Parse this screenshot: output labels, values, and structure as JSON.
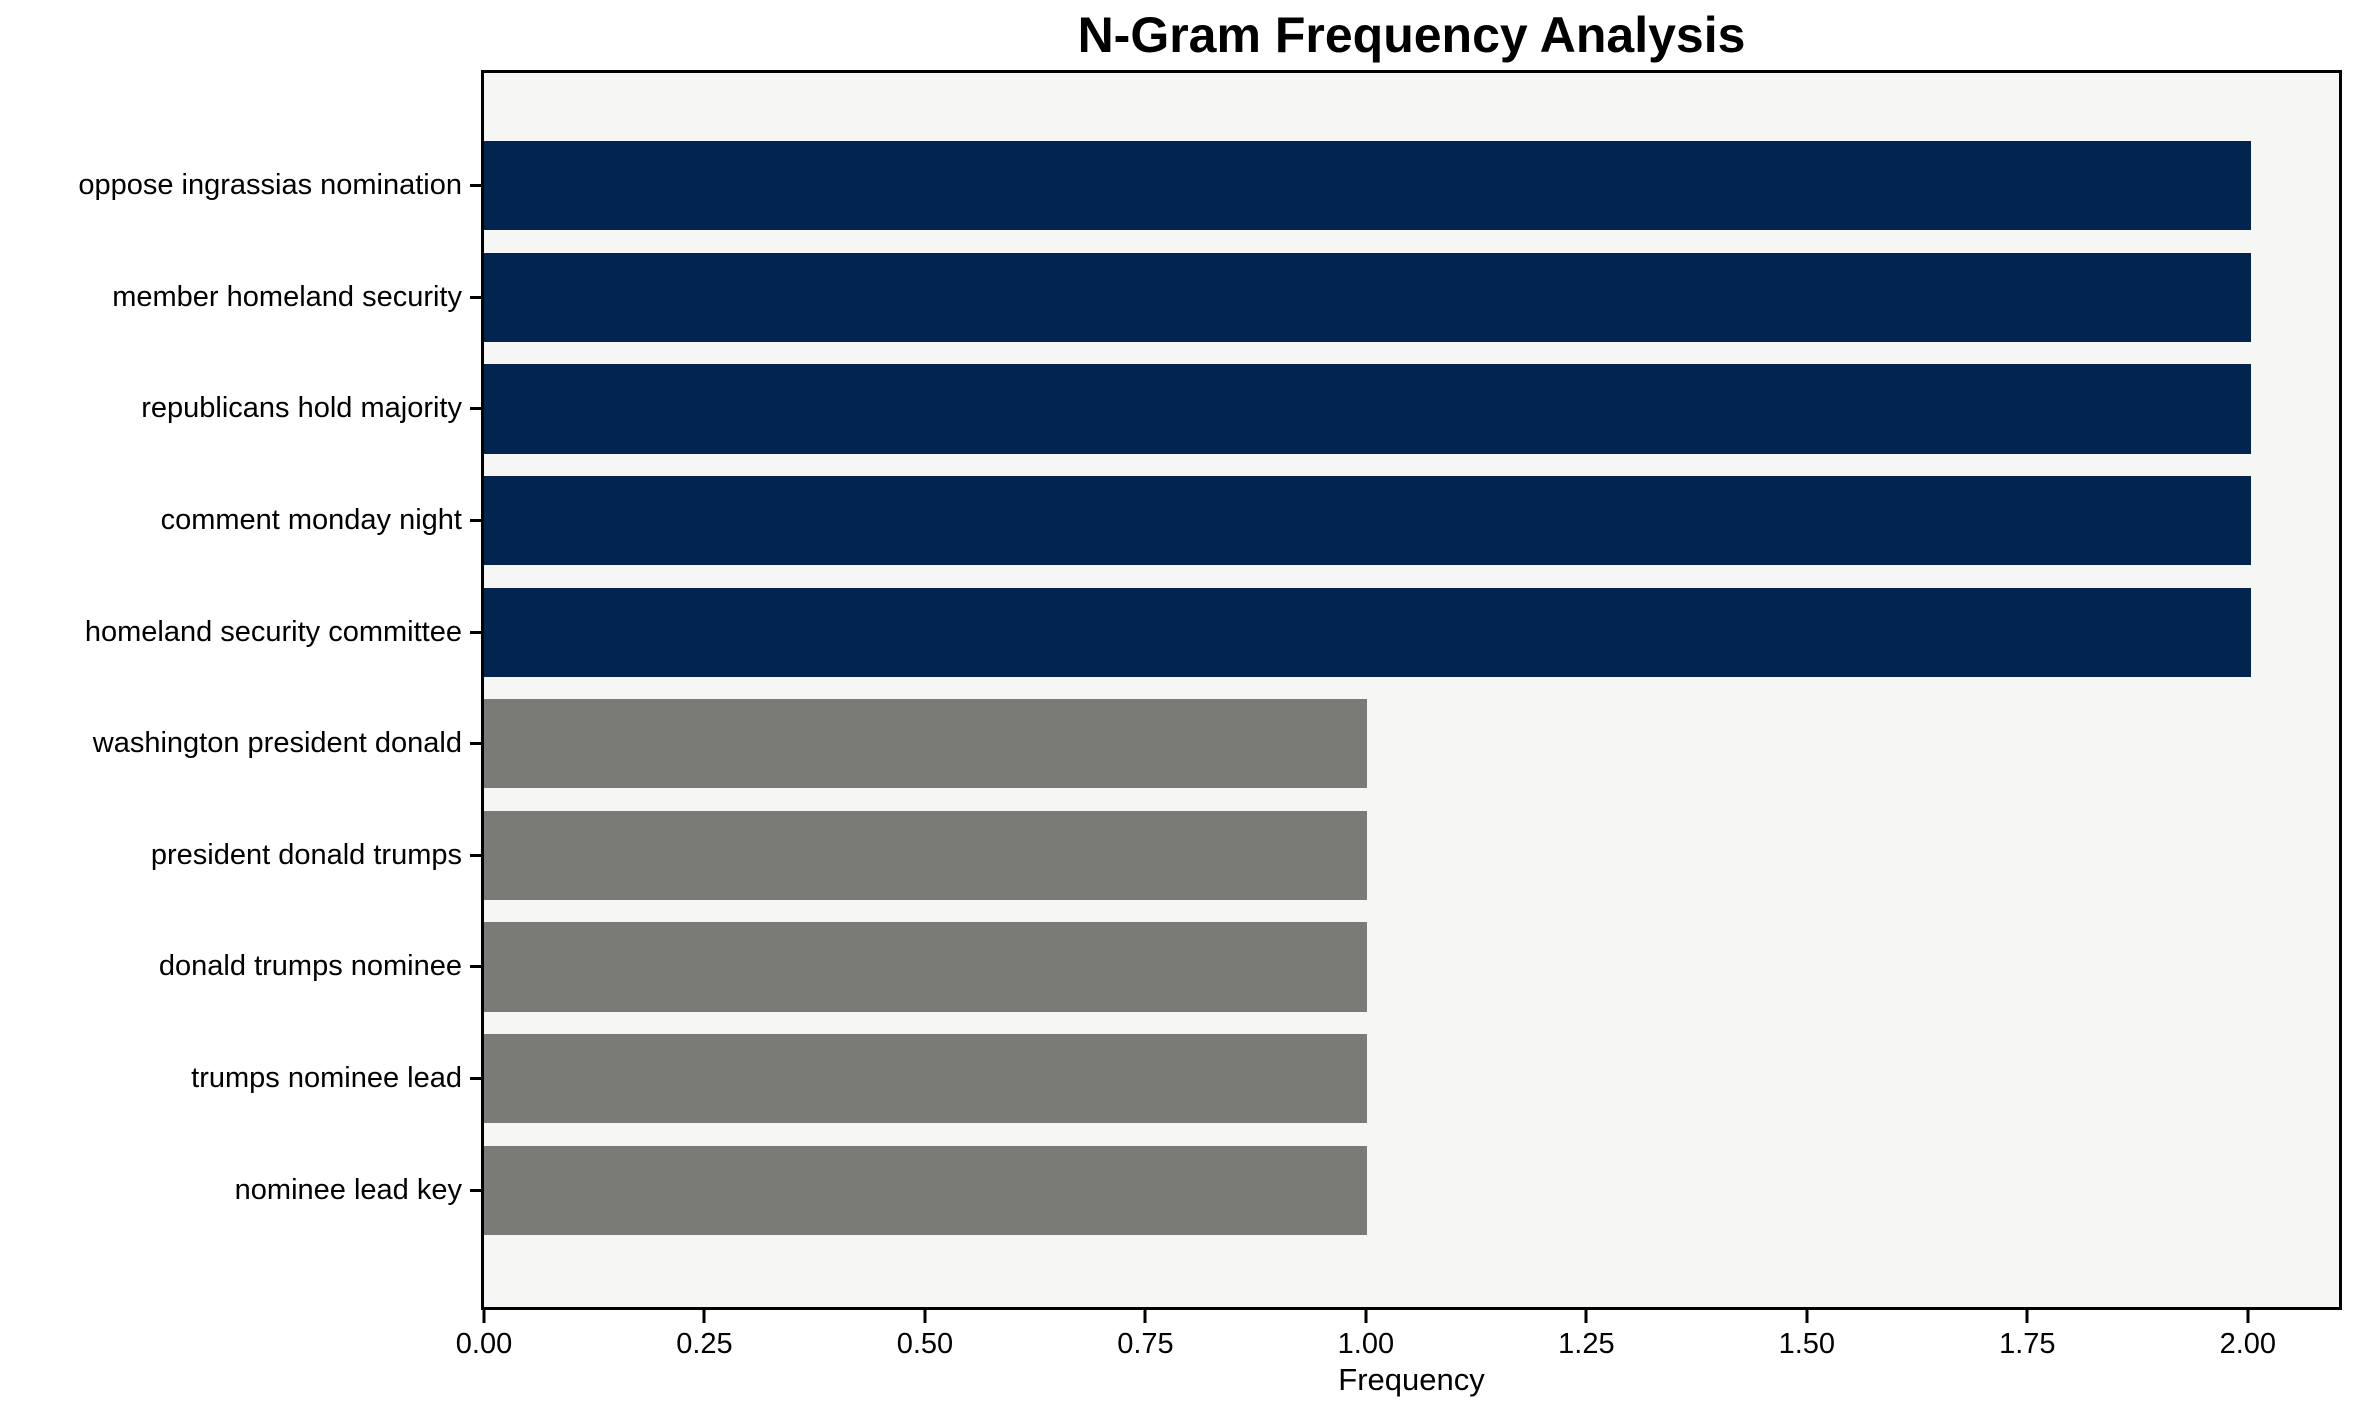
{
  "figure": {
    "background": "#ffffff",
    "plot_background": "#f6f6f5",
    "axis_color": "#000000",
    "navy_color": "#02254f",
    "gray_color": "#7a7b77"
  },
  "chart_data": {
    "type": "bar",
    "orientation": "horizontal",
    "title": "N-Gram Frequency Analysis",
    "xlabel": "Frequency",
    "ylabel": "",
    "categories": [
      "oppose ingrassias nomination",
      "member homeland security",
      "republicans hold majority",
      "comment monday night",
      "homeland security committee",
      "washington president donald",
      "president donald trumps",
      "donald trumps nominee",
      "trumps nominee lead",
      "nominee lead key"
    ],
    "values": [
      2,
      2,
      2,
      2,
      2,
      1,
      1,
      1,
      1,
      1
    ],
    "bar_colors": [
      "#02254f",
      "#02254f",
      "#02254f",
      "#02254f",
      "#02254f",
      "#7a7b77",
      "#7a7b77",
      "#7a7b77",
      "#7a7b77",
      "#7a7b77"
    ],
    "xlim": [
      0,
      2.1
    ],
    "xticks": [
      0,
      0.25,
      0.5,
      0.75,
      1.0,
      1.25,
      1.5,
      1.75,
      2.0
    ],
    "xtick_labels": [
      "0.00",
      "0.25",
      "0.50",
      "0.75",
      "1.00",
      "1.25",
      "1.50",
      "1.75",
      "2.00"
    ],
    "grid": false,
    "legend": "none",
    "bar_height_fraction": 0.8
  }
}
